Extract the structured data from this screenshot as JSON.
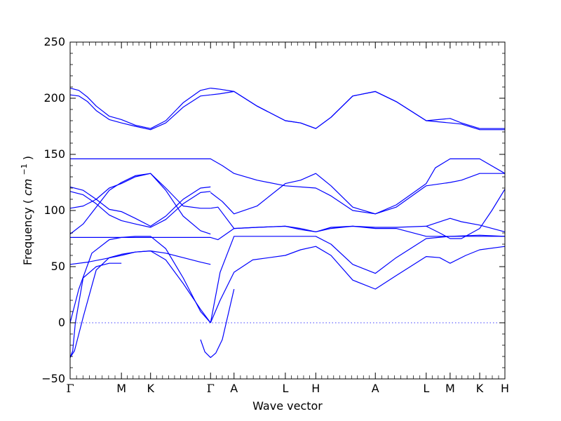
{
  "chart_data": {
    "type": "line",
    "xlabel": "Wave vector",
    "ylabel": "Frequency",
    "ylabel_unit_base": "cm",
    "ylabel_unit_exp": "−1",
    "ylim": [
      -50,
      250
    ],
    "yticks": [
      -50,
      0,
      50,
      100,
      150,
      200,
      250
    ],
    "ytick_labels": [
      "−50",
      "0",
      "50",
      "100",
      "150",
      "200",
      "250"
    ],
    "xlim": [
      0,
      1
    ],
    "high_symmetry_points": [
      {
        "label": "Γ",
        "x": 0.0
      },
      {
        "label": "M",
        "x": 0.118
      },
      {
        "label": "K",
        "x": 0.185
      },
      {
        "label": "Γ",
        "x": 0.323
      },
      {
        "label": "A",
        "x": 0.377
      },
      {
        "label": "L",
        "x": 0.495
      },
      {
        "label": "H",
        "x": 0.565
      },
      {
        "label": "A",
        "x": 0.702
      },
      {
        "label": "L",
        "x": 0.819
      },
      {
        "label": "M",
        "x": 0.874
      },
      {
        "label": "K",
        "x": 0.942
      },
      {
        "label": "H",
        "x": 1.0
      }
    ],
    "zero_line": true,
    "line_color": "#0000ff",
    "zero_line_color": "#0000ff",
    "series": [
      {
        "x": [
          0.0,
          0.02,
          0.04,
          0.06,
          0.09,
          0.118,
          0.15,
          0.185,
          0.22,
          0.26,
          0.3,
          0.323
        ],
        "values": [
          209,
          207,
          201,
          193,
          184,
          181,
          176,
          173,
          180,
          196,
          207,
          209
        ]
      },
      {
        "x": [
          0.0,
          0.02,
          0.04,
          0.06,
          0.09,
          0.118,
          0.15,
          0.185,
          0.22,
          0.26,
          0.3,
          0.323
        ],
        "values": [
          203,
          202,
          197,
          189,
          181,
          178,
          175,
          172,
          178,
          192,
          202,
          203
        ]
      },
      {
        "x": [
          0.323,
          0.345,
          0.377,
          0.43,
          0.495,
          0.53,
          0.565,
          0.6,
          0.65,
          0.702,
          0.75,
          0.819,
          0.874,
          0.9,
          0.942,
          1.0
        ],
        "values": [
          209,
          208,
          206,
          193,
          180,
          178,
          173,
          183,
          202,
          206,
          197,
          180,
          182,
          178,
          173,
          173
        ]
      },
      {
        "x": [
          0.323,
          0.345,
          0.377,
          0.43,
          0.495,
          0.53,
          0.565,
          0.6,
          0.65,
          0.702,
          0.75,
          0.819,
          0.874,
          0.9,
          0.942,
          1.0
        ],
        "values": [
          203,
          204,
          206,
          193,
          180,
          178,
          173,
          183,
          202,
          206,
          197,
          180,
          178,
          177,
          172,
          172
        ]
      },
      {
        "x": [
          0.0,
          0.323,
          0.35,
          0.377,
          0.43,
          0.495,
          0.565,
          0.6,
          0.65,
          0.702,
          0.75,
          0.819,
          0.84,
          0.874,
          0.9,
          0.942,
          1.0
        ],
        "values": [
          146,
          146,
          140,
          133,
          127,
          122,
          120,
          113,
          100,
          97,
          105,
          124,
          138,
          146,
          146,
          146,
          133
        ]
      },
      {
        "x": [
          0.0,
          0.03,
          0.06,
          0.09,
          0.118,
          0.15,
          0.185,
          0.22,
          0.26,
          0.3,
          0.323
        ],
        "values": [
          102,
          104,
          110,
          120,
          124,
          130,
          133,
          120,
          104,
          102,
          102
        ]
      },
      {
        "x": [
          0.0,
          0.03,
          0.06,
          0.09,
          0.118,
          0.15,
          0.185,
          0.22,
          0.26,
          0.3,
          0.323
        ],
        "values": [
          121,
          118,
          110,
          101,
          99,
          93,
          86,
          95,
          110,
          120,
          121
        ]
      },
      {
        "x": [
          0.0,
          0.03,
          0.06,
          0.09,
          0.118,
          0.15,
          0.185,
          0.22,
          0.26,
          0.3,
          0.323
        ],
        "values": [
          117,
          114,
          106,
          96,
          91,
          88,
          85,
          92,
          106,
          116,
          117
        ]
      },
      {
        "x": [
          0.0,
          0.03,
          0.06,
          0.09,
          0.118,
          0.15,
          0.185,
          0.22,
          0.26,
          0.3,
          0.323
        ],
        "values": [
          79,
          88,
          103,
          118,
          125,
          131,
          133,
          118,
          95,
          82,
          79
        ]
      },
      {
        "x": [
          0.323,
          0.35,
          0.377,
          0.43,
          0.495,
          0.53,
          0.565,
          0.6,
          0.65,
          0.702,
          0.75,
          0.819,
          0.874,
          0.9,
          0.942,
          1.0
        ],
        "values": [
          116,
          108,
          97,
          104,
          124,
          127,
          133,
          122,
          103,
          97,
          103,
          122,
          125,
          127,
          133,
          133
        ]
      },
      {
        "x": [
          0.323,
          0.34,
          0.377,
          0.43,
          0.495,
          0.53,
          0.565,
          0.6,
          0.65,
          0.702,
          0.75,
          0.819,
          0.874,
          0.9,
          0.942,
          1.0
        ],
        "values": [
          102,
          103,
          84,
          85,
          86,
          83,
          81,
          85,
          86,
          85,
          85,
          86,
          93,
          90,
          87,
          81
        ]
      },
      {
        "x": [
          0.819,
          0.85,
          0.874,
          0.9,
          0.942,
          0.97,
          1.0
        ],
        "values": [
          86,
          80,
          75,
          75,
          84,
          100,
          119
        ]
      },
      {
        "x": [
          0.0,
          0.323,
          0.34,
          0.377,
          0.43,
          0.495,
          0.53,
          0.565,
          0.6,
          0.65,
          0.702,
          0.75,
          0.819,
          0.874,
          0.942,
          1.0
        ],
        "values": [
          76,
          76,
          74,
          84,
          85,
          86,
          84,
          81,
          84,
          86,
          84,
          84,
          77,
          77,
          78,
          77
        ]
      },
      {
        "x": [
          0.0,
          0.04,
          0.08,
          0.118,
          0.15,
          0.185,
          0.22,
          0.26,
          0.3,
          0.323
        ],
        "values": [
          52,
          54,
          57,
          60,
          63,
          64,
          62,
          58,
          54,
          52
        ]
      },
      {
        "x": [
          0.0,
          0.02,
          0.05,
          0.09,
          0.118,
          0.15,
          0.185,
          0.22,
          0.26,
          0.3,
          0.323
        ],
        "values": [
          0,
          30,
          62,
          74,
          76,
          77,
          77,
          66,
          40,
          10,
          0
        ]
      },
      {
        "x": [
          0.0,
          0.01,
          0.03,
          0.06,
          0.09,
          0.118,
          0.15,
          0.185,
          0.22,
          0.26,
          0.3,
          0.323
        ],
        "values": [
          -31,
          -25,
          5,
          47,
          58,
          61,
          63,
          64,
          56,
          35,
          12,
          0
        ]
      },
      {
        "x": [
          0.323,
          0.345,
          0.377,
          0.43,
          0.495,
          0.53,
          0.565,
          0.6,
          0.65,
          0.702,
          0.75,
          0.819,
          0.874,
          0.942,
          1.0
        ],
        "values": [
          0,
          45,
          77,
          77,
          77,
          77,
          77,
          70,
          52,
          44,
          58,
          75,
          77,
          77,
          77
        ]
      },
      {
        "x": [
          0.323,
          0.345,
          0.377,
          0.42,
          0.495,
          0.53,
          0.565,
          0.6,
          0.65,
          0.702,
          0.75,
          0.819,
          0.85,
          0.874,
          0.91,
          0.942,
          1.0
        ],
        "values": [
          0,
          20,
          45,
          56,
          60,
          65,
          68,
          60,
          38,
          30,
          42,
          59,
          58,
          53,
          60,
          65,
          68
        ]
      },
      {
        "x": [
          0.3,
          0.31,
          0.323,
          0.335,
          0.35,
          0.377
        ],
        "values": [
          -15,
          -26,
          -31,
          -27,
          -15,
          30
        ]
      },
      {
        "x": [
          0.0,
          0.006,
          0.012,
          0.03,
          0.06,
          0.09,
          0.118
        ],
        "values": [
          -31,
          -25,
          0,
          40,
          50,
          53,
          53
        ]
      }
    ]
  }
}
